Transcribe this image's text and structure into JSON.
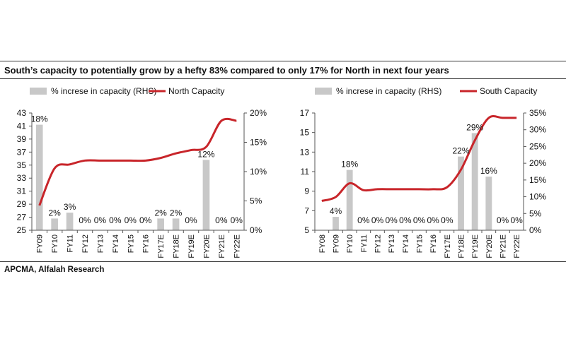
{
  "title": "South’s capacity to potentially grow by a hefty 83% compared to only 17% for North in next four years",
  "source": "APCMA, Alfalah Research",
  "colors": {
    "bar": "#c8c8c8",
    "line": "#c8252a",
    "axis": "#555555"
  },
  "chart_data": [
    {
      "type": "bar+line",
      "legend": [
        "% increse in capacity (RHS)",
        "North Capacity"
      ],
      "categories": [
        "FY09",
        "FY10",
        "FY11",
        "FY12",
        "FY13",
        "FY14",
        "FY15",
        "FY16",
        "FY17E",
        "FY18E",
        "FY19E",
        "FY20E",
        "FY21E",
        "FY22E"
      ],
      "bar_series": {
        "name": "% increse in capacity (RHS)",
        "values": [
          18,
          2,
          3,
          0,
          0,
          0,
          0,
          0,
          2,
          2,
          0,
          12,
          0,
          0
        ],
        "labels": [
          "18%",
          "2%",
          "3%",
          "0%",
          "0%",
          "0%",
          "0%",
          "0%",
          "2%",
          "2%",
          "0%",
          "12%",
          "0%",
          "0%"
        ]
      },
      "line_series": {
        "name": "North Capacity",
        "values": [
          28.8,
          34.5,
          35.1,
          35.7,
          35.7,
          35.7,
          35.7,
          35.7,
          36.1,
          36.8,
          37.3,
          37.8,
          41.8,
          41.8
        ]
      },
      "y_left": {
        "min": 25,
        "max": 43,
        "ticks": [
          "25",
          "27",
          "29",
          "31",
          "33",
          "35",
          "37",
          "39",
          "41",
          "43"
        ]
      },
      "y_right": {
        "min": 0,
        "max": 20,
        "ticks": [
          "0%",
          "5%",
          "10%",
          "15%",
          "20%"
        ]
      }
    },
    {
      "type": "bar+line",
      "legend": [
        "% increse in capacity (RHS)",
        "South Capacity"
      ],
      "categories": [
        "FY08",
        "FY09",
        "FY10",
        "FY11",
        "FY12",
        "FY13",
        "FY14",
        "FY15",
        "FY16",
        "FY17E",
        "FY18E",
        "FY19E",
        "FY20E",
        "FY21E",
        "FY22E"
      ],
      "bar_series": {
        "name": "% increse in capacity (RHS)",
        "values": [
          0,
          4,
          18,
          0,
          0,
          0,
          0,
          0,
          0,
          0,
          22,
          29,
          16,
          0,
          0
        ],
        "labels": [
          "",
          "4%",
          "18%",
          "0%",
          "0%",
          "0%",
          "0%",
          "0%",
          "0%",
          "0%",
          "22%",
          "29%",
          "16%",
          "0%",
          "0%"
        ]
      },
      "line_series": {
        "name": "South Capacity",
        "values": [
          8.0,
          8.4,
          9.8,
          9.1,
          9.2,
          9.2,
          9.2,
          9.2,
          9.2,
          9.4,
          11.2,
          14.2,
          16.5,
          16.5,
          16.5
        ]
      },
      "y_left": {
        "min": 5,
        "max": 17,
        "ticks": [
          "5",
          "7",
          "9",
          "11",
          "13",
          "15",
          "17"
        ]
      },
      "y_right": {
        "min": 0,
        "max": 35,
        "ticks": [
          "0%",
          "5%",
          "10%",
          "15%",
          "20%",
          "25%",
          "30%",
          "35%"
        ]
      }
    }
  ]
}
